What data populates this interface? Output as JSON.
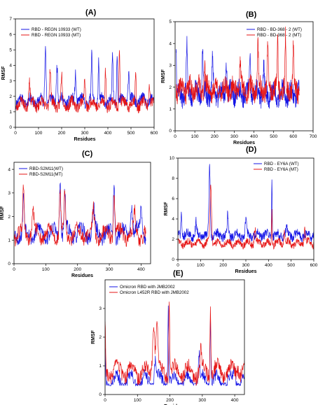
{
  "colors": {
    "wt": "#1414e6",
    "mt": "#e61414",
    "axis": "#000000"
  },
  "chart_data": [
    {
      "id": "A",
      "type": "line",
      "panel_label": "(A)",
      "xlabel": "Residues",
      "ylabel": "RMSF",
      "xlim": [
        0,
        600
      ],
      "ylim": [
        0,
        7
      ],
      "xticks": [
        0,
        100,
        200,
        300,
        400,
        500,
        600
      ],
      "yticks": [
        0,
        1,
        2,
        3,
        4,
        5,
        6,
        7
      ],
      "legend_position": "top-left",
      "series": [
        {
          "name": "RBD - REGN 10933 (WT)",
          "color": "#1414e6",
          "x_start": 0,
          "x_end": 600,
          "base": 1.7,
          "noise": 0.35,
          "seed": 11,
          "peaks": [
            [
              130,
              5.2,
              4
            ],
            [
              180,
              4.2,
              4
            ],
            [
              260,
              3.6,
              4
            ],
            [
              330,
              4.8,
              3
            ],
            [
              360,
              4.3,
              3
            ],
            [
              420,
              4.7,
              3
            ],
            [
              440,
              5.1,
              3
            ],
            [
              490,
              3.8,
              4
            ]
          ]
        },
        {
          "name": "RBD - REGN 10933 (MT)",
          "color": "#e61414",
          "x_start": 0,
          "x_end": 600,
          "base": 1.5,
          "noise": 0.35,
          "seed": 23,
          "peaks": [
            [
              60,
              3.1,
              4
            ],
            [
              150,
              3.7,
              4
            ],
            [
              200,
              3.2,
              4
            ],
            [
              300,
              3.0,
              4
            ],
            [
              390,
              3.8,
              3
            ],
            [
              450,
              5.3,
              3
            ],
            [
              520,
              3.6,
              3
            ],
            [
              580,
              2.8,
              4
            ]
          ]
        }
      ]
    },
    {
      "id": "B",
      "type": "line",
      "panel_label": "(B)",
      "xlabel": "Residues",
      "ylabel": "RMSF",
      "xlim": [
        0,
        700
      ],
      "ylim": [
        0,
        5
      ],
      "xticks": [
        0,
        100,
        200,
        300,
        400,
        500,
        600,
        700
      ],
      "yticks": [
        0,
        1,
        2,
        3,
        4,
        5
      ],
      "legend_position": "top-right",
      "series": [
        {
          "name": "RBD - BD-368 - 2 (WT)",
          "color": "#1414e6",
          "x_start": 5,
          "x_end": 630,
          "base": 1.7,
          "noise": 0.45,
          "seed": 37,
          "peaks": [
            [
              5,
              3.8,
              3
            ],
            [
              60,
              3.8,
              4
            ],
            [
              140,
              3.6,
              4
            ],
            [
              190,
              3.4,
              4
            ],
            [
              260,
              3.4,
              4
            ],
            [
              380,
              3.3,
              4
            ],
            [
              450,
              2.9,
              4
            ]
          ]
        },
        {
          "name": "RBD - BD-368 - 2 (MT)",
          "color": "#e61414",
          "x_start": 5,
          "x_end": 630,
          "base": 1.9,
          "noise": 0.45,
          "seed": 41,
          "peaks": [
            [
              150,
              3.0,
              4
            ],
            [
              330,
              3.2,
              4
            ],
            [
              420,
              3.9,
              4
            ],
            [
              470,
              3.6,
              4
            ],
            [
              520,
              4.3,
              3
            ],
            [
              560,
              4.1,
              3
            ],
            [
              600,
              3.6,
              4
            ]
          ]
        }
      ]
    },
    {
      "id": "C",
      "type": "line",
      "panel_label": "(C)",
      "xlabel": "Residues",
      "ylabel": "RMSF",
      "xlim": [
        0,
        430
      ],
      "ylim": [
        0,
        4.3
      ],
      "xticks": [
        0,
        100,
        200,
        300,
        400
      ],
      "yticks": [
        0,
        1,
        2,
        3,
        4
      ],
      "legend_position": "top-left",
      "series": [
        {
          "name": "RBD-S2M11(WT)",
          "color": "#1414e6",
          "x_start": 0,
          "x_end": 415,
          "base": 1.3,
          "noise": 0.3,
          "seed": 53,
          "peaks": [
            [
              30,
              2.8,
              3
            ],
            [
              145,
              3.7,
              3
            ],
            [
              160,
              3.0,
              3
            ],
            [
              250,
              2.3,
              4
            ],
            [
              315,
              3.4,
              3
            ],
            [
              370,
              2.6,
              4
            ],
            [
              400,
              2.4,
              4
            ]
          ]
        },
        {
          "name": "RBD-S2M11(MT)",
          "color": "#e61414",
          "x_start": 0,
          "x_end": 415,
          "base": 1.25,
          "noise": 0.3,
          "seed": 61,
          "peaks": [
            [
              30,
              3.2,
              3
            ],
            [
              60,
              2.1,
              4
            ],
            [
              145,
              3.1,
              3
            ],
            [
              160,
              2.8,
              3
            ],
            [
              250,
              2.2,
              4
            ],
            [
              315,
              3.2,
              3
            ],
            [
              380,
              2.2,
              4
            ]
          ]
        }
      ]
    },
    {
      "id": "D",
      "type": "line",
      "panel_label": "(D)",
      "xlabel": "Residues",
      "ylabel": "RMSF",
      "xlim": [
        0,
        600
      ],
      "ylim": [
        0,
        10
      ],
      "xticks": [
        0,
        100,
        200,
        300,
        400,
        500,
        600
      ],
      "yticks": [
        0,
        2,
        4,
        6,
        8,
        10
      ],
      "legend_position": "top-right",
      "series": [
        {
          "name": "RBD - EY6A (WT)",
          "color": "#1414e6",
          "x_start": 0,
          "x_end": 600,
          "base": 2.4,
          "noise": 0.45,
          "seed": 71,
          "peaks": [
            [
              15,
              4.8,
              3
            ],
            [
              80,
              3.6,
              4
            ],
            [
              140,
              9.2,
              4
            ],
            [
              220,
              4.5,
              3
            ],
            [
              300,
              3.8,
              4
            ],
            [
              415,
              8.2,
              2
            ],
            [
              480,
              3.0,
              4
            ]
          ]
        },
        {
          "name": "RBD - EY6A (MT)",
          "color": "#e61414",
          "x_start": 0,
          "x_end": 600,
          "base": 1.6,
          "noise": 0.35,
          "seed": 83,
          "peaks": [
            [
              145,
              7.4,
              5
            ],
            [
              340,
              3.2,
              4
            ],
            [
              415,
              4.9,
              2
            ],
            [
              470,
              2.8,
              4
            ],
            [
              560,
              3.1,
              4
            ]
          ]
        }
      ]
    },
    {
      "id": "E",
      "type": "line",
      "panel_label": "(E)",
      "xlabel": "Residues",
      "ylabel": "RMSF",
      "xlim": [
        0,
        430
      ],
      "ylim": [
        0,
        4
      ],
      "xticks": [
        0,
        100,
        200,
        300,
        400
      ],
      "yticks": [
        0,
        1,
        2,
        3
      ],
      "legend_position": "top-left",
      "series": [
        {
          "name": "Omicron RBD with JMB2002",
          "color": "#1414e6",
          "x_start": 0,
          "x_end": 430,
          "base": 0.45,
          "noise": 0.2,
          "seed": 97,
          "peaks": [
            [
              0,
              1.6,
              2
            ],
            [
              155,
              1.3,
              4
            ],
            [
              195,
              3.1,
              2
            ],
            [
              290,
              1.4,
              3
            ],
            [
              325,
              2.8,
              2
            ],
            [
              400,
              0.9,
              4
            ]
          ]
        },
        {
          "name": "Omicron L452R RBD with JMB2002",
          "color": "#e61414",
          "x_start": 0,
          "x_end": 430,
          "base": 0.8,
          "noise": 0.25,
          "seed": 103,
          "peaks": [
            [
              0,
              2.5,
              2
            ],
            [
              150,
              2.4,
              5
            ],
            [
              160,
              2.3,
              4
            ],
            [
              198,
              3.6,
              2
            ],
            [
              295,
              1.6,
              3
            ],
            [
              325,
              3.1,
              2
            ],
            [
              410,
              1.1,
              4
            ]
          ]
        }
      ]
    }
  ]
}
